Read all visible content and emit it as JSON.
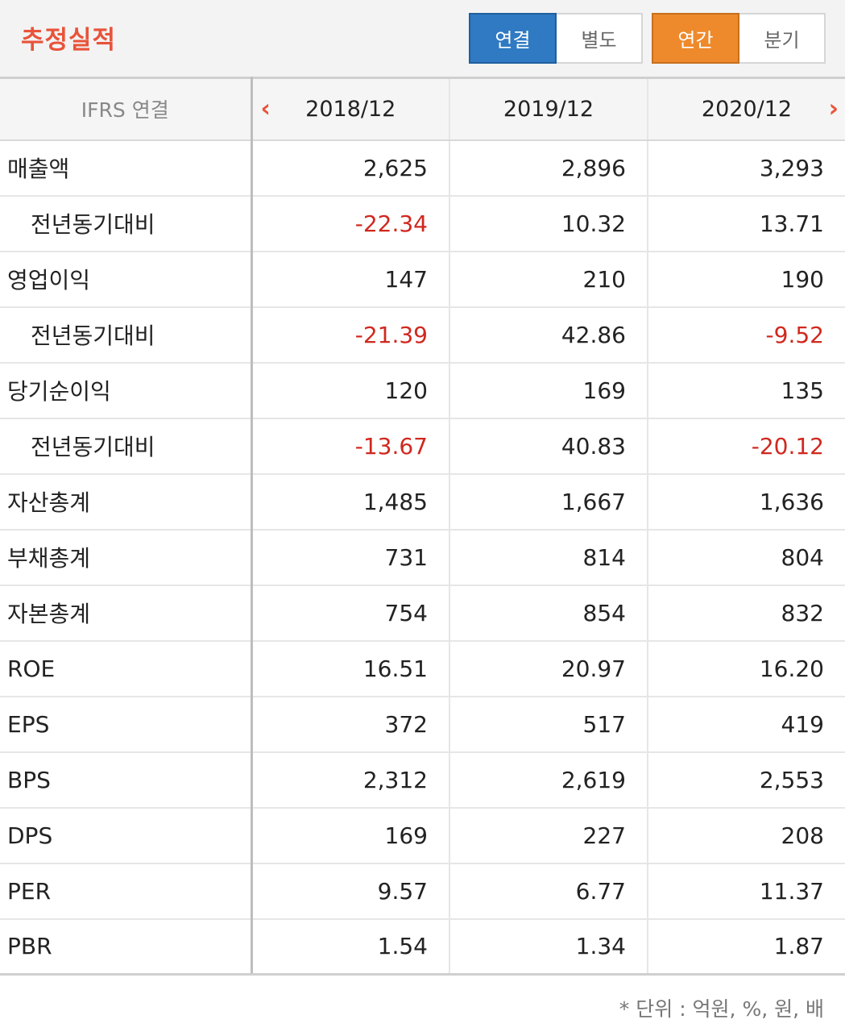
{
  "header": {
    "title": "추정실적",
    "basis_toggle": [
      {
        "label": "연결",
        "active": true
      },
      {
        "label": "별도",
        "active": false
      }
    ],
    "period_toggle": [
      {
        "label": "연간",
        "active": true
      },
      {
        "label": "분기",
        "active": false
      }
    ],
    "accent_blue": "#2f7ac2",
    "accent_orange": "#ee8a2c",
    "title_color": "#e8533a"
  },
  "table": {
    "corner_label": "IFRS 연결",
    "prev_icon": "chevron-left-icon",
    "next_icon": "chevron-right-icon",
    "years": [
      "2018/12",
      "2019/12",
      "2020/12"
    ],
    "rows": [
      {
        "label": "매출액",
        "sub": false,
        "values": [
          "2,625",
          "2,896",
          "3,293"
        ]
      },
      {
        "label": "전년동기대비",
        "sub": true,
        "values": [
          "-22.34",
          "10.32",
          "13.71"
        ]
      },
      {
        "label": "영업이익",
        "sub": false,
        "values": [
          "147",
          "210",
          "190"
        ]
      },
      {
        "label": "전년동기대비",
        "sub": true,
        "values": [
          "-21.39",
          "42.86",
          "-9.52"
        ]
      },
      {
        "label": "당기순이익",
        "sub": false,
        "values": [
          "120",
          "169",
          "135"
        ]
      },
      {
        "label": "전년동기대비",
        "sub": true,
        "values": [
          "-13.67",
          "40.83",
          "-20.12"
        ]
      },
      {
        "label": "자산총계",
        "sub": false,
        "values": [
          "1,485",
          "1,667",
          "1,636"
        ]
      },
      {
        "label": "부채총계",
        "sub": false,
        "values": [
          "731",
          "814",
          "804"
        ]
      },
      {
        "label": "자본총계",
        "sub": false,
        "values": [
          "754",
          "854",
          "832"
        ]
      },
      {
        "label": "ROE",
        "sub": false,
        "values": [
          "16.51",
          "20.97",
          "16.20"
        ]
      },
      {
        "label": "EPS",
        "sub": false,
        "values": [
          "372",
          "517",
          "419"
        ]
      },
      {
        "label": "BPS",
        "sub": false,
        "values": [
          "2,312",
          "2,619",
          "2,553"
        ]
      },
      {
        "label": "DPS",
        "sub": false,
        "values": [
          "169",
          "227",
          "208"
        ]
      },
      {
        "label": "PER",
        "sub": false,
        "values": [
          "9.57",
          "6.77",
          "11.37"
        ]
      },
      {
        "label": "PBR",
        "sub": false,
        "values": [
          "1.54",
          "1.34",
          "1.87"
        ]
      }
    ],
    "negative_color": "#d0281e"
  },
  "footnote": "* 단위 : 억원, %, 원, 배"
}
